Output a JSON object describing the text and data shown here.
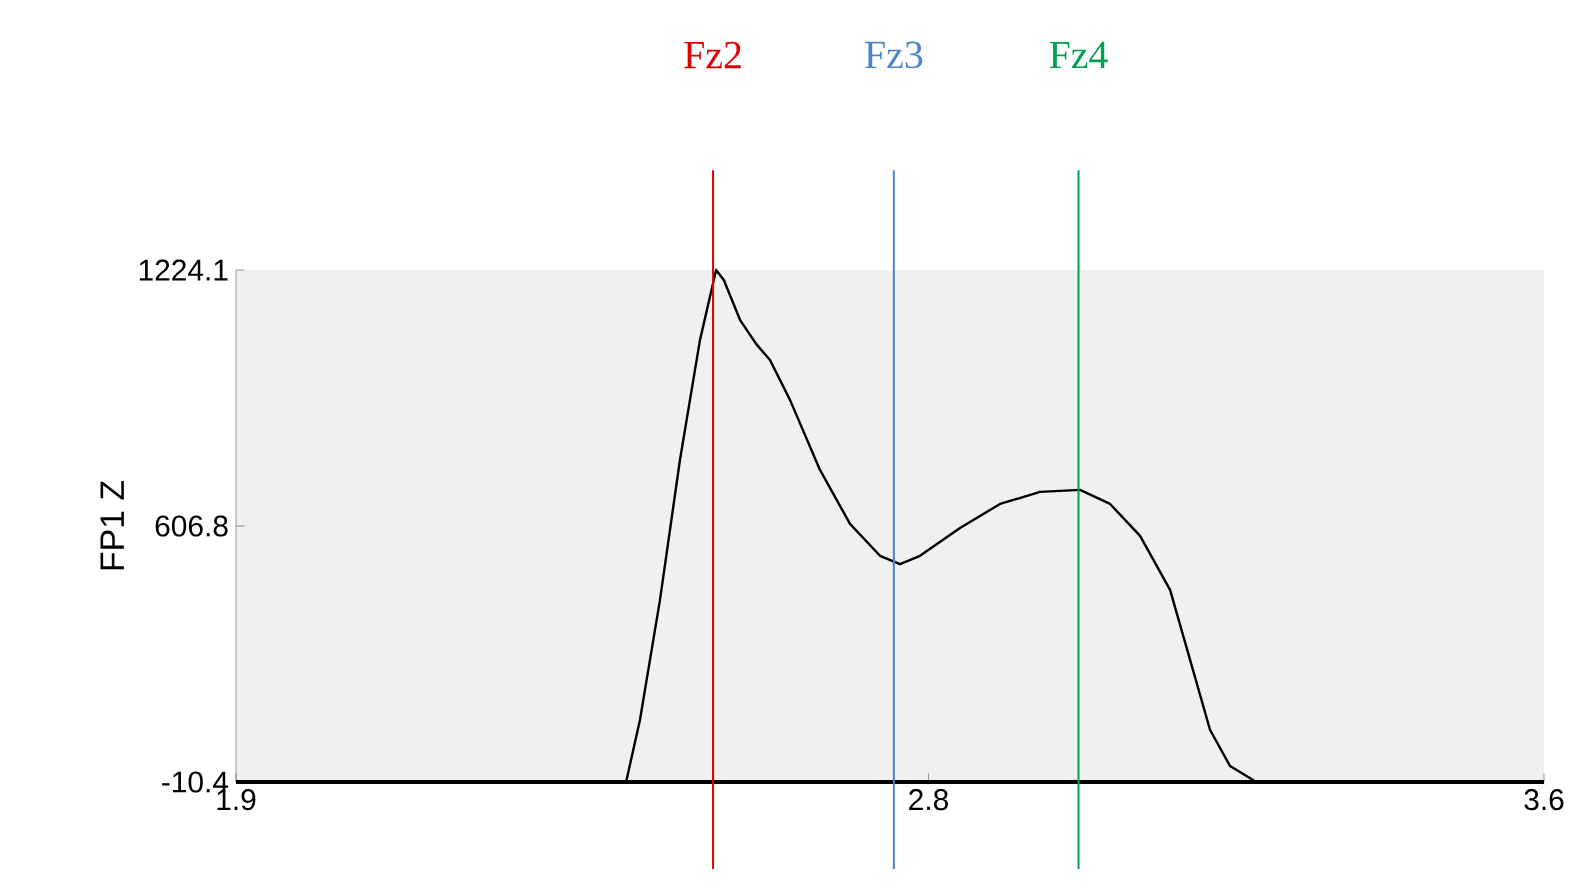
{
  "chart_data": {
    "type": "line",
    "ylabel": "FP1 Z",
    "xlim": [
      1.9,
      3.6
    ],
    "ylim": [
      -10.4,
      1224.1
    ],
    "xticks": [
      1.9,
      2.8,
      3.6
    ],
    "yticks": [
      -10.4,
      606.8,
      1224.1
    ],
    "grid": false,
    "series": [
      {
        "color": "#000000",
        "x": [
          1.9,
          2.407,
          2.425,
          2.451,
          2.477,
          2.503,
          2.524,
          2.534,
          2.555,
          2.576,
          2.594,
          2.62,
          2.659,
          2.698,
          2.737,
          2.763,
          2.789,
          2.841,
          2.893,
          2.945,
          2.997,
          3.036,
          3.075,
          3.114,
          3.14,
          3.166,
          3.192,
          3.226,
          3.6
        ],
        "values": [
          -10.4,
          -10.4,
          139,
          428,
          766,
          1055,
          1224,
          1200,
          1104,
          1046,
          1007,
          911,
          742,
          612,
          535,
          515,
          535,
          602,
          660,
          689,
          694,
          660,
          583,
          453,
          284,
          115,
          28,
          -10.4,
          -10.4
        ]
      }
    ],
    "ref_lines": [
      {
        "axis": "x",
        "value": 2.52,
        "label": "Fz2",
        "color": "#e00000"
      },
      {
        "axis": "x",
        "value": 2.755,
        "label": "Fz3",
        "color": "#4a86c8"
      },
      {
        "axis": "x",
        "value": 2.995,
        "label": "Fz4",
        "color": "#00a050"
      }
    ]
  }
}
